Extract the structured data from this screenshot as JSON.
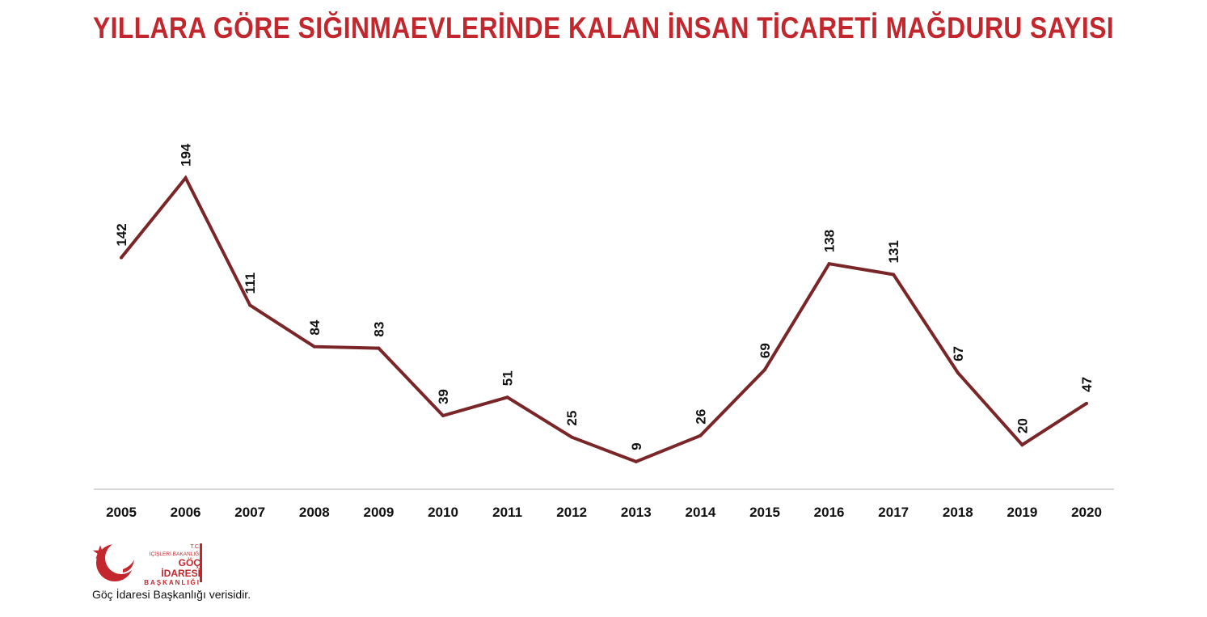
{
  "title": "YILLARA GÖRE SIĞINMAEVLERİNDE KALAN İNSAN TİCARETİ MAĞDURU SAYISI",
  "colors": {
    "title": "#c1272d",
    "line": "#7a2628",
    "axis": "#cccccc",
    "text": "#111111"
  },
  "chart_data": {
    "type": "line",
    "categories": [
      "2005",
      "2006",
      "2007",
      "2008",
      "2009",
      "2010",
      "2011",
      "2012",
      "2013",
      "2014",
      "2015",
      "2016",
      "2017",
      "2018",
      "2019",
      "2020"
    ],
    "values": [
      142,
      194,
      111,
      84,
      83,
      39,
      51,
      25,
      9,
      26,
      69,
      138,
      131,
      67,
      20,
      47
    ],
    "data_labels": [
      "142",
      "194",
      "111",
      "84",
      "83",
      "39",
      "51",
      "25",
      "9",
      "26",
      "69",
      "138",
      "131",
      "67",
      "20",
      "47"
    ],
    "ylim": [
      0,
      194
    ],
    "grid": false,
    "legend": "none"
  },
  "logo": {
    "line1": "T.C.",
    "line2": "İÇİŞLERİ BAKANLIĞI",
    "line3": "GÖÇ İDARESİ",
    "line4": "BAŞKANLIĞI"
  },
  "source": "Göç İdaresi Başkanlığı verisidir."
}
